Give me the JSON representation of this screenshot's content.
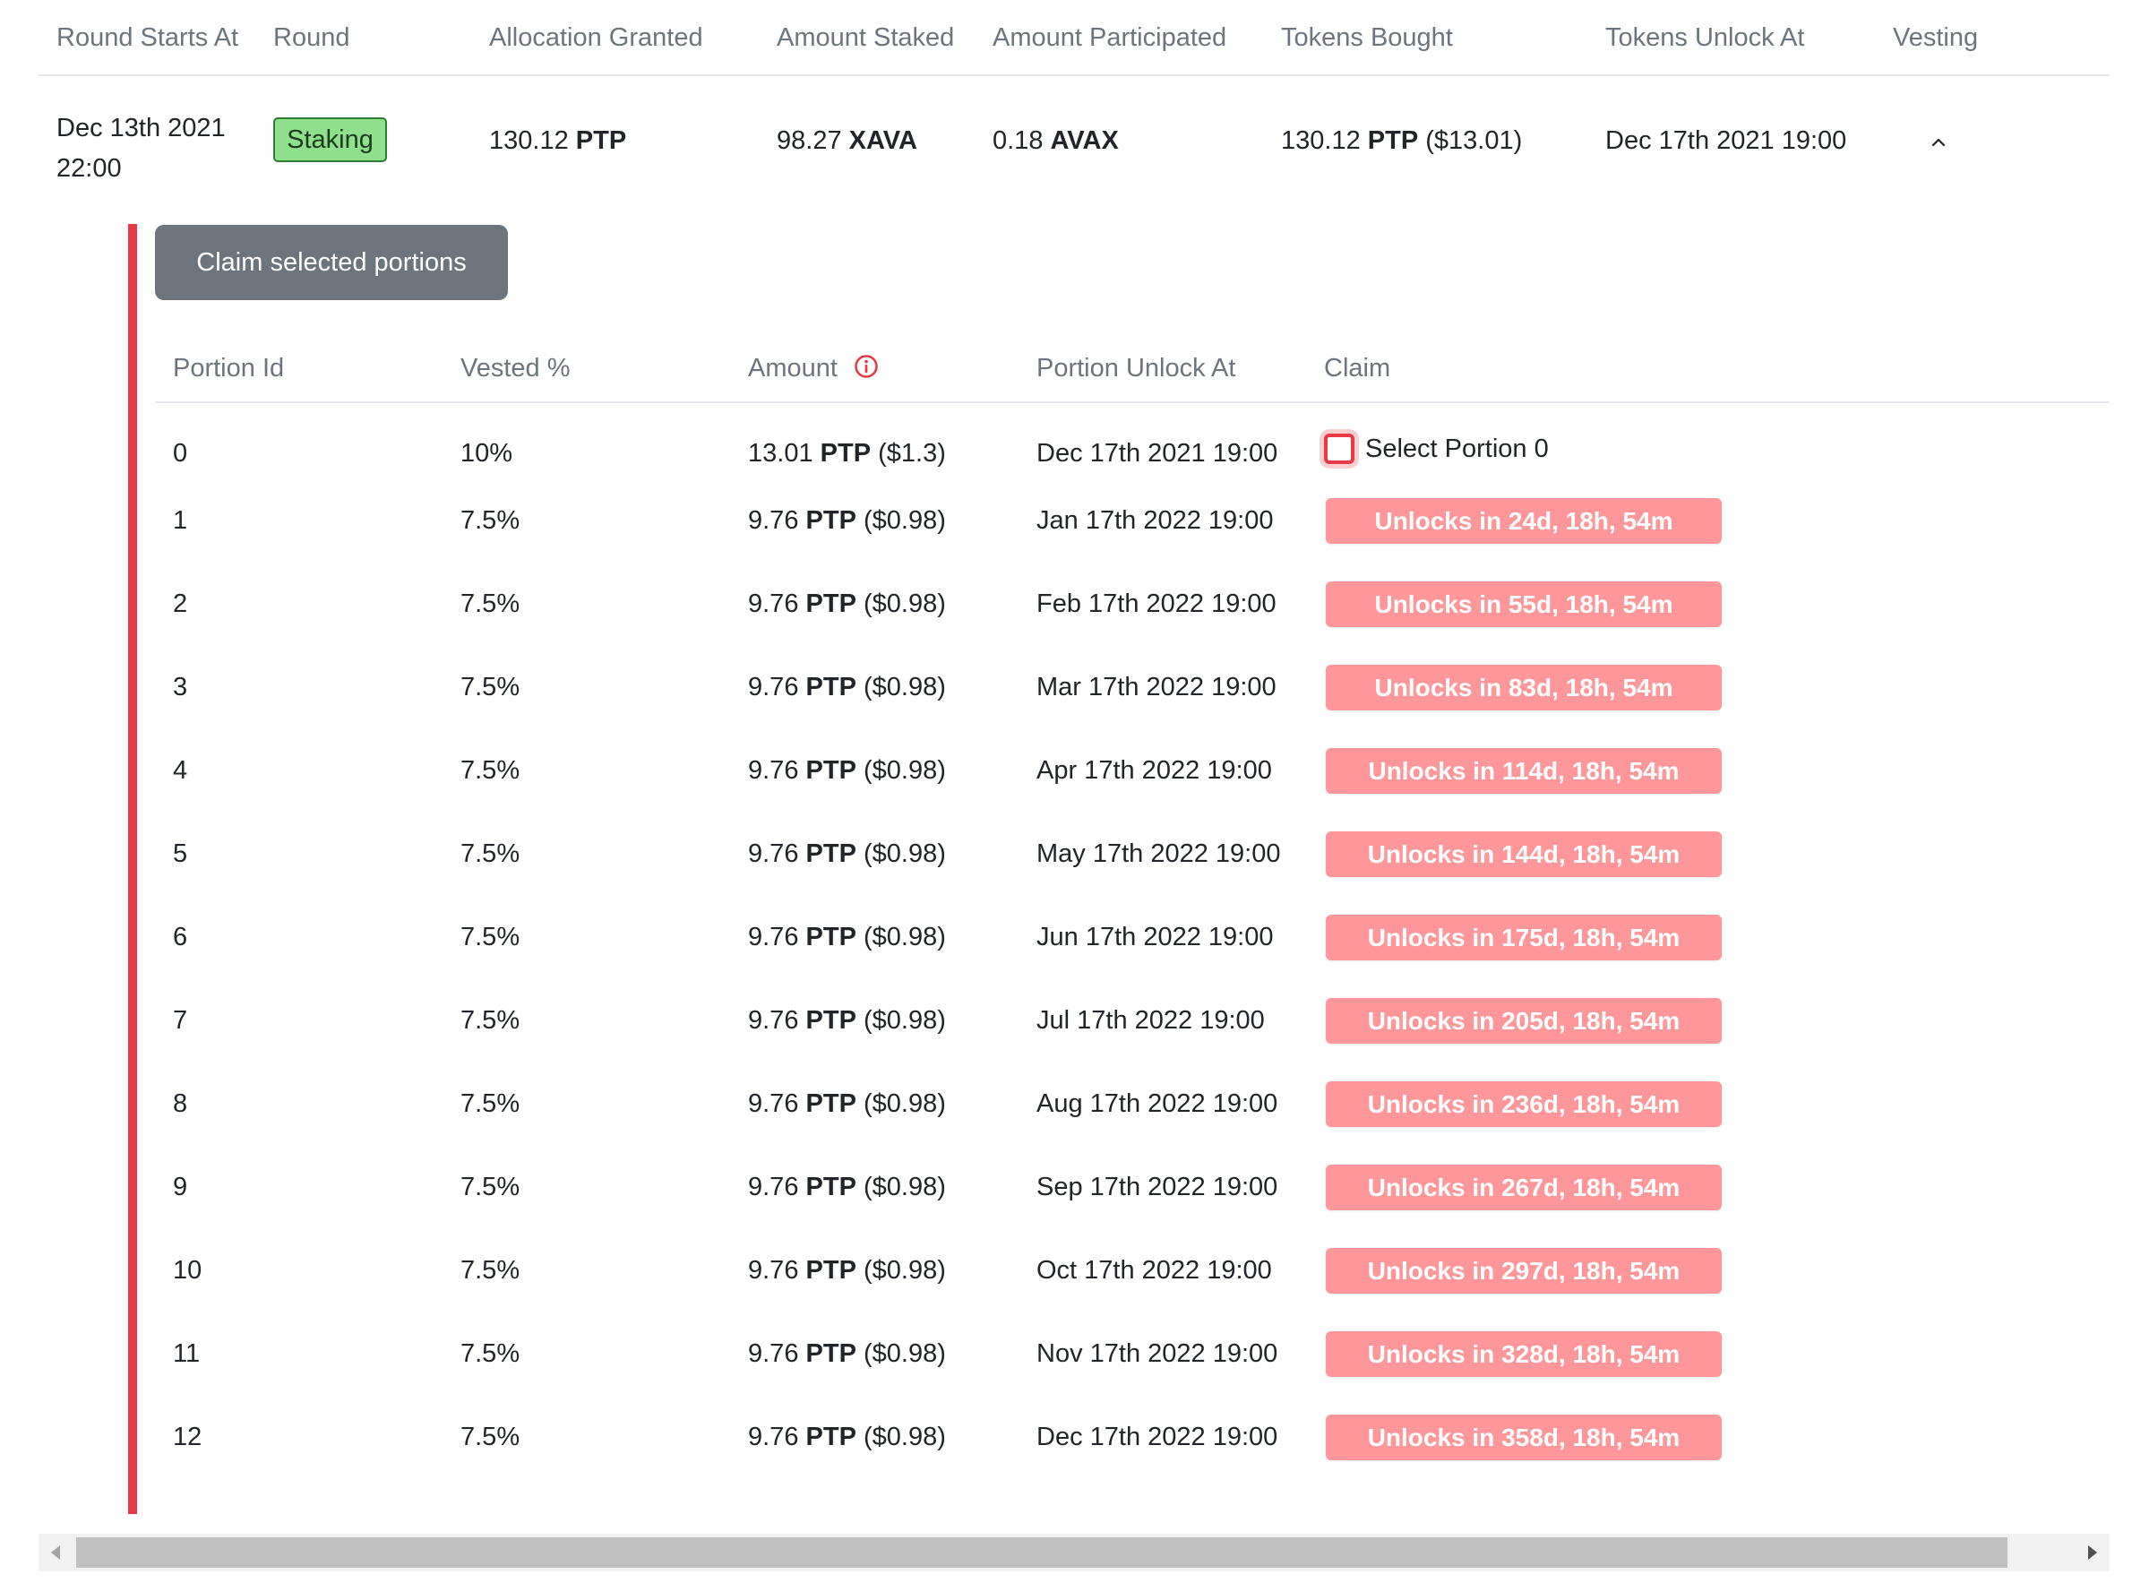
{
  "outer_table": {
    "headers": [
      "Round Starts At",
      "Round",
      "Allocation Granted",
      "Amount Staked",
      "Amount Participated",
      "Tokens Bought",
      "Tokens Unlock At",
      "Vesting"
    ],
    "row": {
      "round_starts_at": "Dec 13th 2021 22:00",
      "round": "Staking",
      "allocation_value": "130.12",
      "allocation_token": "PTP",
      "staked_value": "98.27",
      "staked_token": "XAVA",
      "participated_value": "0.18",
      "participated_token": "AVAX",
      "bought_value": "130.12",
      "bought_token": "PTP",
      "bought_usd": "($13.01)",
      "unlock_at": "Dec 17th 2021 19:00",
      "vesting_toggle_icon": "chevron-up-icon"
    }
  },
  "vesting": {
    "claim_button_label": "Claim selected portions",
    "headers": [
      "Portion Id",
      "Vested %",
      "Amount",
      "Portion Unlock At",
      "Claim"
    ],
    "amount_info_icon": "info-icon",
    "token": "PTP",
    "portions": [
      {
        "id": "0",
        "vested": "10%",
        "amount": "13.01",
        "usd": "($1.3)",
        "unlock_at": "Dec 17th 2021 19:00",
        "claim_label": "Select Portion 0"
      },
      {
        "id": "1",
        "vested": "7.5%",
        "amount": "9.76",
        "usd": "($0.98)",
        "unlock_at": "Jan 17th 2022 19:00",
        "claim_label": "Unlocks in 24d, 18h, 54m"
      },
      {
        "id": "2",
        "vested": "7.5%",
        "amount": "9.76",
        "usd": "($0.98)",
        "unlock_at": "Feb 17th 2022 19:00",
        "claim_label": "Unlocks in 55d, 18h, 54m"
      },
      {
        "id": "3",
        "vested": "7.5%",
        "amount": "9.76",
        "usd": "($0.98)",
        "unlock_at": "Mar 17th 2022 19:00",
        "claim_label": "Unlocks in 83d, 18h, 54m"
      },
      {
        "id": "4",
        "vested": "7.5%",
        "amount": "9.76",
        "usd": "($0.98)",
        "unlock_at": "Apr 17th 2022 19:00",
        "claim_label": "Unlocks in 114d, 18h, 54m"
      },
      {
        "id": "5",
        "vested": "7.5%",
        "amount": "9.76",
        "usd": "($0.98)",
        "unlock_at": "May 17th 2022 19:00",
        "claim_label": "Unlocks in 144d, 18h, 54m"
      },
      {
        "id": "6",
        "vested": "7.5%",
        "amount": "9.76",
        "usd": "($0.98)",
        "unlock_at": "Jun 17th 2022 19:00",
        "claim_label": "Unlocks in 175d, 18h, 54m"
      },
      {
        "id": "7",
        "vested": "7.5%",
        "amount": "9.76",
        "usd": "($0.98)",
        "unlock_at": "Jul 17th 2022 19:00",
        "claim_label": "Unlocks in 205d, 18h, 54m"
      },
      {
        "id": "8",
        "vested": "7.5%",
        "amount": "9.76",
        "usd": "($0.98)",
        "unlock_at": "Aug 17th 2022 19:00",
        "claim_label": "Unlocks in 236d, 18h, 54m"
      },
      {
        "id": "9",
        "vested": "7.5%",
        "amount": "9.76",
        "usd": "($0.98)",
        "unlock_at": "Sep 17th 2022 19:00",
        "claim_label": "Unlocks in 267d, 18h, 54m"
      },
      {
        "id": "10",
        "vested": "7.5%",
        "amount": "9.76",
        "usd": "($0.98)",
        "unlock_at": "Oct 17th 2022 19:00",
        "claim_label": "Unlocks in 297d, 18h, 54m"
      },
      {
        "id": "11",
        "vested": "7.5%",
        "amount": "9.76",
        "usd": "($0.98)",
        "unlock_at": "Nov 17th 2022 19:00",
        "claim_label": "Unlocks in 328d, 18h, 54m"
      },
      {
        "id": "12",
        "vested": "7.5%",
        "amount": "9.76",
        "usd": "($0.98)",
        "unlock_at": "Dec 17th 2022 19:00",
        "claim_label": "Unlocks in 358d, 18h, 54m"
      }
    ]
  },
  "colors": {
    "accent_red": "#e73a46",
    "locked_pill": "#ff969a",
    "staking_badge": "#8fe08d",
    "button_gray": "#6c757d"
  }
}
